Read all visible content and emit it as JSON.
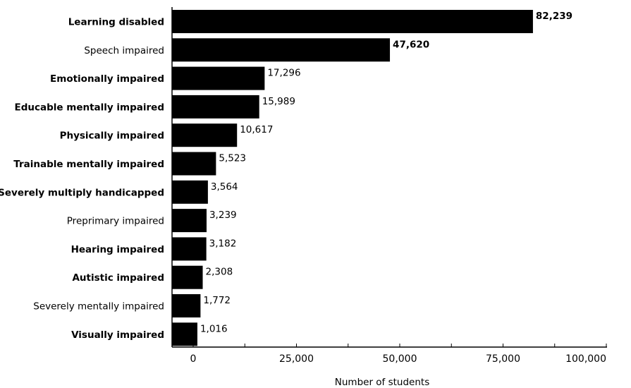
{
  "chart_data": {
    "type": "bar",
    "orientation": "horizontal",
    "categories": [
      "Learning disabled",
      "Speech impaired",
      "Emotionally impaired",
      "Educable mentally impaired",
      "Physically impaired",
      "Trainable mentally impaired",
      "Severely multiply handicapped",
      "Preprimary impaired",
      "Hearing impaired",
      "Autistic impaired",
      "Severely mentally impaired",
      "Visually impaired"
    ],
    "values": [
      82239,
      47620,
      17296,
      15989,
      10617,
      5523,
      3564,
      3239,
      3182,
      2308,
      1772,
      1016
    ],
    "value_labels": [
      "82,239",
      "47,620",
      "17,296",
      "15,989",
      "10,617",
      "5,523",
      "3,564",
      "3,239",
      "3,182",
      "2,308",
      "1,772",
      "1,016"
    ],
    "bold_categories": [
      true,
      false,
      true,
      true,
      true,
      true,
      true,
      false,
      true,
      true,
      false,
      true
    ],
    "bold_values": [
      true,
      true,
      false,
      false,
      false,
      false,
      false,
      false,
      false,
      false,
      false,
      false
    ],
    "xlim": [
      0,
      100000
    ],
    "xticks": [
      0,
      25000,
      50000,
      75000,
      100000
    ],
    "xtick_labels": [
      "0",
      "25,000",
      "50,000",
      "75,000",
      "100,000"
    ],
    "xlabel": "Number of students",
    "ylabel": "",
    "title": "",
    "grid": false,
    "legend": "none",
    "bar_color": "#000000"
  }
}
